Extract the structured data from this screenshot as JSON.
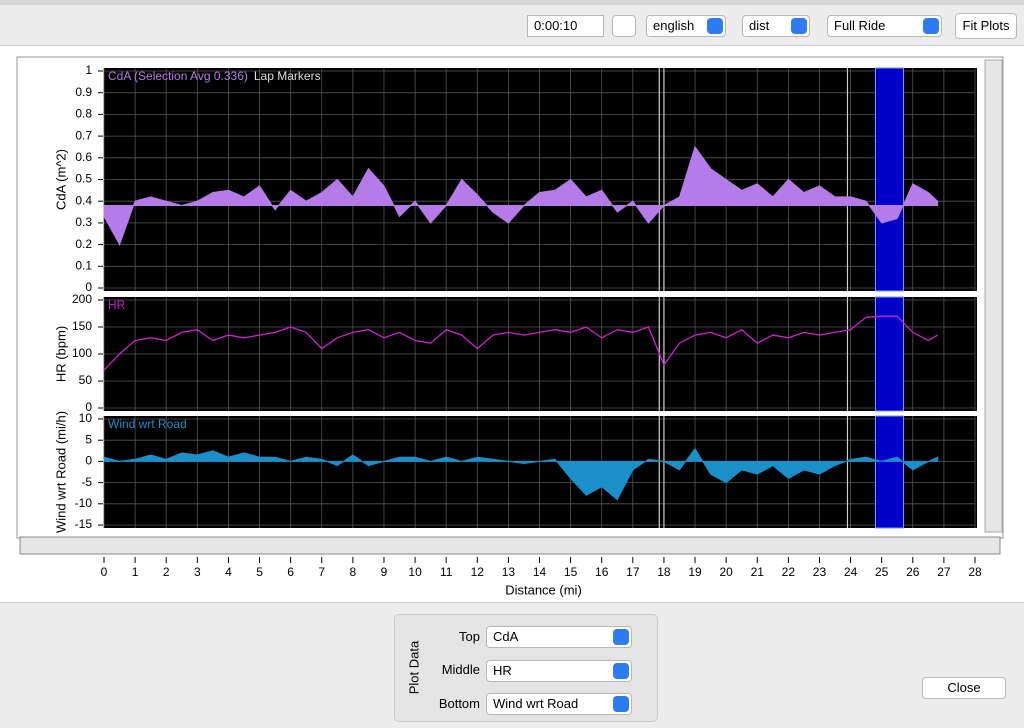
{
  "toolbar": {
    "time": "0:00:10",
    "units": "english",
    "axis_mode": "dist",
    "range": "Full Ride",
    "fit_button": "Fit Plots"
  },
  "plot_settings": {
    "selection": [
      24.8,
      25.7
    ],
    "lap_markers": [
      17.85,
      18.0,
      23.9
    ],
    "grid": true
  },
  "chart_data": [
    {
      "type": "area",
      "title": "CdA (Selection Avg 0.336)",
      "annotation": "Lap Markers",
      "ylabel": "CdA (m^2)",
      "color": "#b57be8",
      "fill_to": 0.38,
      "ylim": [
        0,
        1
      ],
      "yticks": [
        0,
        0.1,
        0.2,
        0.3,
        0.4,
        0.5,
        0.6,
        0.7,
        0.8,
        0.9,
        1
      ],
      "x": [
        0,
        0.5,
        1,
        1.5,
        2,
        2.5,
        3,
        3.5,
        4,
        4.5,
        5,
        5.5,
        6,
        6.5,
        7,
        7.5,
        8,
        8.5,
        9,
        9.5,
        10,
        10.5,
        11,
        11.5,
        12,
        12.5,
        13,
        13.5,
        14,
        14.5,
        15,
        15.5,
        16,
        16.5,
        17,
        17.5,
        18,
        18.5,
        19,
        19.5,
        20,
        20.5,
        21,
        21.5,
        22,
        22.5,
        23,
        23.5,
        24,
        24.5,
        25,
        25.5,
        26,
        26.5,
        26.8
      ],
      "values": [
        0.33,
        0.2,
        0.4,
        0.42,
        0.4,
        0.38,
        0.4,
        0.44,
        0.45,
        0.42,
        0.47,
        0.36,
        0.45,
        0.4,
        0.44,
        0.5,
        0.42,
        0.55,
        0.47,
        0.33,
        0.4,
        0.3,
        0.38,
        0.5,
        0.43,
        0.35,
        0.3,
        0.38,
        0.44,
        0.45,
        0.5,
        0.42,
        0.45,
        0.35,
        0.4,
        0.3,
        0.38,
        0.42,
        0.65,
        0.55,
        0.5,
        0.45,
        0.48,
        0.42,
        0.5,
        0.44,
        0.47,
        0.42,
        0.42,
        0.4,
        0.3,
        0.32,
        0.48,
        0.44,
        0.4
      ]
    },
    {
      "type": "line",
      "title": "HR",
      "ylabel": "HR (bpm)",
      "color": "#d020d0",
      "ylim": [
        0,
        200
      ],
      "yticks": [
        0,
        50,
        100,
        150,
        200
      ],
      "x": [
        0,
        0.5,
        1,
        1.5,
        2,
        2.5,
        3,
        3.5,
        4,
        4.5,
        5,
        5.5,
        6,
        6.5,
        7,
        7.5,
        8,
        8.5,
        9,
        9.5,
        10,
        10.5,
        11,
        11.5,
        12,
        12.5,
        13,
        13.5,
        14,
        14.5,
        15,
        15.5,
        16,
        16.5,
        17,
        17.5,
        18,
        18.5,
        19,
        19.5,
        20,
        20.5,
        21,
        21.5,
        22,
        22.5,
        23,
        23.5,
        24,
        24.5,
        25,
        25.5,
        26,
        26.5,
        26.8
      ],
      "values": [
        70,
        100,
        125,
        130,
        125,
        140,
        145,
        125,
        135,
        130,
        135,
        140,
        150,
        140,
        110,
        130,
        140,
        145,
        130,
        140,
        125,
        120,
        145,
        135,
        110,
        135,
        140,
        135,
        140,
        145,
        140,
        150,
        130,
        145,
        140,
        150,
        80,
        120,
        135,
        140,
        130,
        145,
        120,
        135,
        130,
        140,
        135,
        140,
        145,
        168,
        170,
        170,
        140,
        125,
        135
      ]
    },
    {
      "type": "area",
      "title": "Wind wrt Road",
      "ylabel": "Wind wrt Road (mi/h)",
      "color": "#1a8fc8",
      "fill_to": 0,
      "ylim": [
        -15,
        10
      ],
      "yticks": [
        -15,
        -10,
        -5,
        0,
        5,
        10
      ],
      "xlabel": "Distance (mi)",
      "xlim": [
        0,
        28
      ],
      "xticks": [
        0,
        1,
        2,
        3,
        4,
        5,
        6,
        7,
        8,
        9,
        10,
        11,
        12,
        13,
        14,
        15,
        16,
        17,
        18,
        19,
        20,
        21,
        22,
        23,
        24,
        25,
        26,
        27,
        28
      ],
      "x": [
        0,
        0.5,
        1,
        1.5,
        2,
        2.5,
        3,
        3.5,
        4,
        4.5,
        5,
        5.5,
        6,
        6.5,
        7,
        7.5,
        8,
        8.5,
        9,
        9.5,
        10,
        10.5,
        11,
        11.5,
        12,
        12.5,
        13,
        13.5,
        14,
        14.5,
        15,
        15.5,
        16,
        16.5,
        17,
        17.5,
        18,
        18.5,
        19,
        19.5,
        20,
        20.5,
        21,
        21.5,
        22,
        22.5,
        23,
        23.5,
        24,
        24.5,
        25,
        25.5,
        26,
        26.5,
        26.8
      ],
      "values": [
        1,
        0,
        0.5,
        1.5,
        0.5,
        2,
        1.5,
        2.5,
        1,
        2,
        1,
        1,
        0,
        1,
        0.5,
        -1,
        1.5,
        -1,
        0,
        1,
        1,
        0,
        1,
        0,
        1,
        0.5,
        0,
        -0.5,
        0,
        0.5,
        -4,
        -8,
        -6,
        -9,
        -2,
        0.5,
        0,
        -2,
        3,
        -3,
        -5,
        -2,
        -3,
        -1,
        -4,
        -2,
        -3,
        -1,
        0.5,
        1,
        0,
        1,
        -2,
        0,
        1
      ]
    }
  ],
  "controls": {
    "group_label": "Plot Data",
    "top_label": "Top",
    "top_value": "CdA",
    "middle_label": "Middle",
    "middle_value": "HR",
    "bottom_label": "Bottom",
    "bottom_value": "Wind wrt Road",
    "close_button": "Close"
  }
}
